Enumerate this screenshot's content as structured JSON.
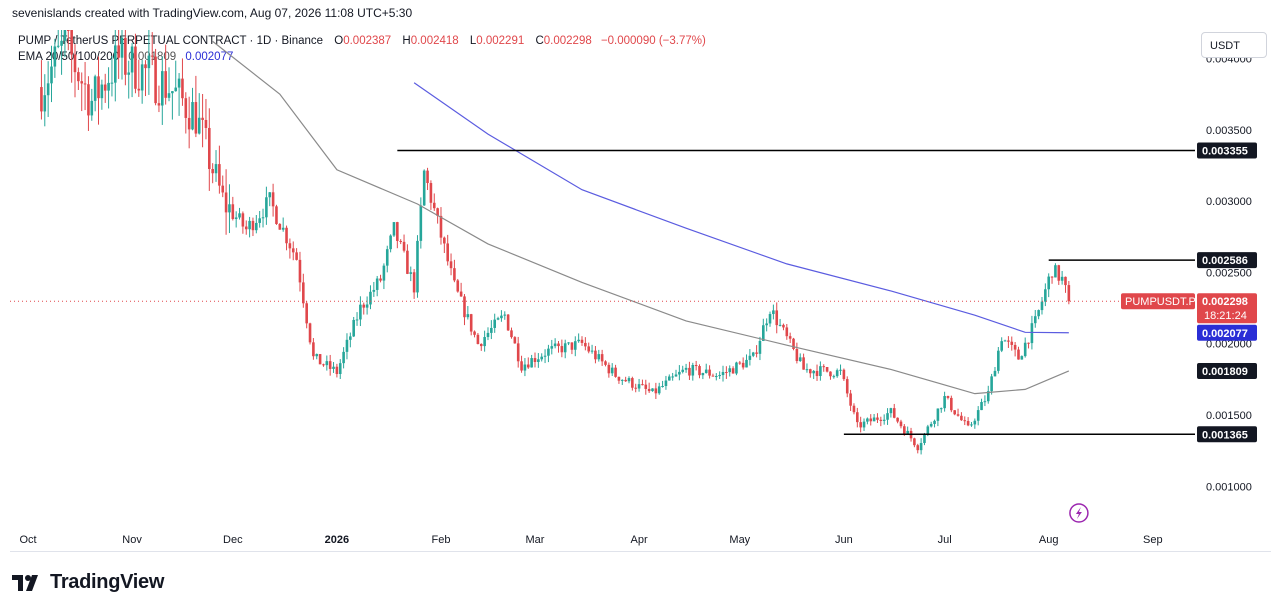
{
  "header": {
    "text": "sevenislands created with TradingView.com, Aug 07, 2026 11:08 UTC+5:30"
  },
  "legend": {
    "symbol": "PUMP / TetherUS PERPETUAL CONTRACT · 1D · Binance",
    "o_label": "O",
    "o": "0.002387",
    "h_label": "H",
    "h": "0.002418",
    "l_label": "L",
    "l": "0.002291",
    "c_label": "C",
    "c": "0.002298",
    "change": "−0.000090 (−3.77%)",
    "ema_label": "EMA 20/50/100/200",
    "ema_val1": "0.001809",
    "ema_val2": "0.002077"
  },
  "currency_button": "USDT",
  "logo": {
    "text": "TradingView",
    "icon": "tradingview-logo-icon"
  },
  "colors": {
    "up": "#26a69a",
    "down": "#e0474b",
    "ema100": "#5b5ce0",
    "ema200": "#8a8a8a",
    "hline": "#000000"
  },
  "chart_data": {
    "type": "candlestick",
    "symbol": "PUMPUSDT.P",
    "ylim": [
      0.00075,
      0.0042
    ],
    "y_ticks": [
      "0.004000",
      "0.003500",
      "0.003000",
      "0.002500",
      "0.002000",
      "0.001500",
      "0.001000"
    ],
    "y_tick_values": [
      0.004,
      0.0035,
      0.003,
      0.0025,
      0.002,
      0.0015,
      0.001
    ],
    "x_ticks": [
      "Oct",
      "Nov",
      "Dec",
      "2026",
      "Feb",
      "Mar",
      "Apr",
      "May",
      "Jun",
      "Jul",
      "Aug",
      "Sep"
    ],
    "x_tick_dates": [
      "2025-10-01",
      "2025-11-01",
      "2025-12-01",
      "2026-01-01",
      "2026-02-01",
      "2026-03-01",
      "2026-04-01",
      "2026-05-01",
      "2026-06-01",
      "2026-07-01",
      "2026-08-01",
      "2026-09-01"
    ],
    "x_range": [
      "2025-10-01",
      "2026-09-10"
    ],
    "last_date": "2026-08-07",
    "price_label": {
      "name": "PUMPUSDT.P",
      "value": "0.002298",
      "countdown": "18:21:24",
      "price": 0.002298
    },
    "horizontal_lines": [
      {
        "value": 0.003355,
        "label": "0.003355",
        "from": "2026-01-19",
        "to": "2026-09-10"
      },
      {
        "value": 0.002586,
        "label": "0.002586",
        "from": "2026-08-01",
        "to": "2026-09-10"
      },
      {
        "value": 0.001365,
        "label": "0.001365",
        "from": "2026-06-01",
        "to": "2026-09-10"
      }
    ],
    "ema_labels": [
      {
        "label": "0.002077",
        "value": 0.002077,
        "color": "#2a2ed6"
      },
      {
        "label": "0.001809",
        "value": 0.001809,
        "color": "#131722"
      }
    ],
    "ema100": {
      "color": "#5b5ce0",
      "points": [
        [
          "2026-01-24",
          0.00383
        ],
        [
          "2026-02-15",
          0.00347
        ],
        [
          "2026-03-15",
          0.00308
        ],
        [
          "2026-04-15",
          0.00281
        ],
        [
          "2026-05-15",
          0.00256
        ],
        [
          "2026-06-15",
          0.00237
        ],
        [
          "2026-07-10",
          0.0022
        ],
        [
          "2026-07-25",
          0.00208
        ],
        [
          "2026-08-07",
          0.002077
        ]
      ]
    },
    "ema200": {
      "color": "#8a8a8a",
      "points": [
        [
          "2025-11-25",
          0.00412
        ],
        [
          "2025-12-15",
          0.00375
        ],
        [
          "2026-01-01",
          0.00322
        ],
        [
          "2026-01-25",
          0.00298
        ],
        [
          "2026-02-15",
          0.0027
        ],
        [
          "2026-03-15",
          0.00243
        ],
        [
          "2026-04-15",
          0.00216
        ],
        [
          "2026-05-15",
          0.00199
        ],
        [
          "2026-06-15",
          0.00182
        ],
        [
          "2026-07-10",
          0.00165
        ],
        [
          "2026-07-25",
          0.00168
        ],
        [
          "2026-08-07",
          0.001809
        ]
      ]
    },
    "anchors": [
      [
        "2025-10-05",
        0.0038
      ],
      [
        "2025-10-12",
        0.0041
      ],
      [
        "2025-10-20",
        0.0037
      ],
      [
        "2025-10-28",
        0.004
      ],
      [
        "2025-11-05",
        0.0039
      ],
      [
        "2025-11-12",
        0.0038
      ],
      [
        "2025-11-20",
        0.0036
      ],
      [
        "2025-11-28",
        0.003
      ],
      [
        "2025-12-05",
        0.0028
      ],
      [
        "2025-12-12",
        0.003
      ],
      [
        "2025-12-20",
        0.0026
      ],
      [
        "2025-12-25",
        0.0019
      ],
      [
        "2026-01-01",
        0.0018
      ],
      [
        "2026-01-08",
        0.00225
      ],
      [
        "2026-01-14",
        0.00245
      ],
      [
        "2026-01-18",
        0.0028
      ],
      [
        "2026-01-24",
        0.0024
      ],
      [
        "2026-01-27",
        0.0032
      ],
      [
        "2026-02-05",
        0.0024
      ],
      [
        "2026-02-12",
        0.002
      ],
      [
        "2026-02-20",
        0.0022
      ],
      [
        "2026-02-25",
        0.00185
      ],
      [
        "2026-03-05",
        0.00195
      ],
      [
        "2026-03-15",
        0.002
      ],
      [
        "2026-03-25",
        0.00178
      ],
      [
        "2026-04-05",
        0.00165
      ],
      [
        "2026-04-15",
        0.00182
      ],
      [
        "2026-04-25",
        0.00178
      ],
      [
        "2026-05-05",
        0.0019
      ],
      [
        "2026-05-10",
        0.00225
      ],
      [
        "2026-05-20",
        0.00182
      ],
      [
        "2026-05-31",
        0.0018
      ],
      [
        "2026-06-05",
        0.00142
      ],
      [
        "2026-06-15",
        0.00152
      ],
      [
        "2026-06-23",
        0.00128
      ],
      [
        "2026-07-01",
        0.00162
      ],
      [
        "2026-07-08",
        0.0014
      ],
      [
        "2026-07-14",
        0.00165
      ],
      [
        "2026-07-18",
        0.00205
      ],
      [
        "2026-07-23",
        0.0019
      ],
      [
        "2026-07-28",
        0.00215
      ],
      [
        "2026-08-02",
        0.00252
      ],
      [
        "2026-08-05",
        0.00245
      ],
      [
        "2026-08-07",
        0.002298
      ]
    ]
  }
}
